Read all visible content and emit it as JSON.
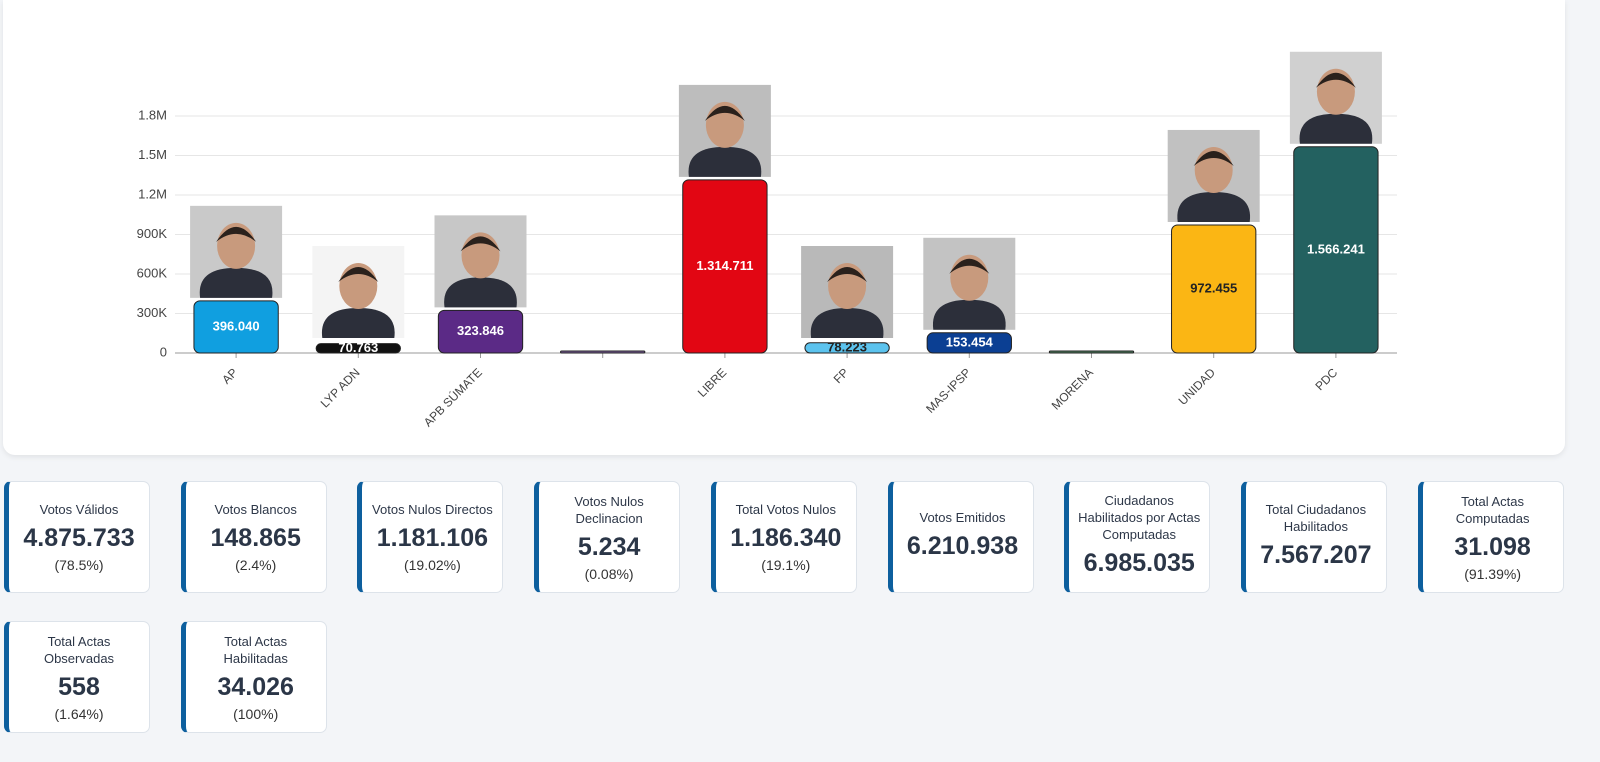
{
  "chart_data": {
    "type": "bar",
    "categories": [
      "AP",
      "LYP ADN",
      "APB SÚMATE",
      null,
      "LIBRE",
      "FP",
      "MAS-IPSP",
      "MORENA",
      "UNIDAD",
      "PDC"
    ],
    "values": [
      396040,
      70763,
      323846,
      5000,
      1314711,
      78223,
      153454,
      5000,
      972455,
      1566241
    ],
    "value_labels": [
      "396.040",
      "70.763",
      "323.846",
      null,
      "1.314.711",
      "78.223",
      "153.454",
      null,
      "972.455",
      "1.566.241"
    ],
    "colors": [
      "#109fe0",
      "#111111",
      "#5b2a86",
      "#7a5c99",
      "#e20613",
      "#5cc3ee",
      "#0b3f93",
      "#4f7f5e",
      "#fbb614",
      "#236160"
    ],
    "ylim": [
      0,
      1800000
    ],
    "yticks": [
      0,
      {
        "value": 300000,
        "label": "300K"
      },
      {
        "value": 600000,
        "label": "600K"
      },
      {
        "value": 900000,
        "label": "900K"
      },
      {
        "value": 1200000,
        "label": "1.2M"
      },
      {
        "value": 1500000,
        "label": "1.5M"
      },
      {
        "value": 1800000,
        "label": "1.8M"
      }
    ],
    "grid": true
  },
  "cards": [
    {
      "title": "Votos Válidos",
      "value": "4.875.733",
      "percent": "(78.5%)"
    },
    {
      "title": "Votos Blancos",
      "value": "148.865",
      "percent": "(2.4%)"
    },
    {
      "title": "Votos Nulos Directos",
      "value": "1.181.106",
      "percent": "(19.02%)"
    },
    {
      "title": "Votos Nulos Declinacion",
      "value": "5.234",
      "percent": "(0.08%)"
    },
    {
      "title": "Total Votos Nulos",
      "value": "1.186.340",
      "percent": "(19.1%)"
    },
    {
      "title": "Votos Emitidos",
      "value": "6.210.938"
    },
    {
      "title": "Ciudadanos Habilitados por Actas Computadas",
      "value": "6.985.035"
    },
    {
      "title": "Total Ciudadanos Habilitados",
      "value": "7.567.207"
    },
    {
      "title": "Total Actas Computadas",
      "value": "31.098",
      "percent": "(91.39%)"
    },
    {
      "title": "Total Actas Observadas",
      "value": "558",
      "percent": "(1.64%)"
    },
    {
      "title": "Total Actas Habilitadas",
      "value": "34.026",
      "percent": "(100%)"
    }
  ]
}
